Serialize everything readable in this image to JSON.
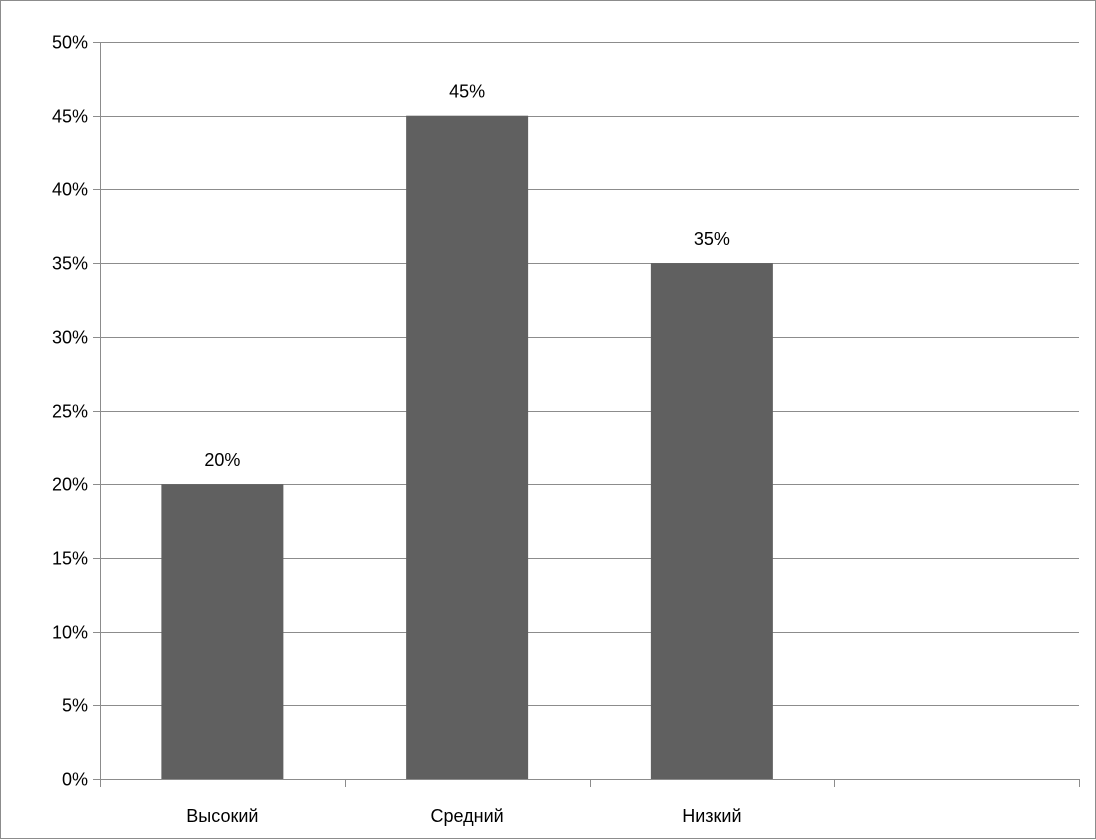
{
  "chart_data": {
    "type": "bar",
    "categories": [
      "Высокий",
      "Средний",
      "Низкий"
    ],
    "values": [
      20,
      45,
      35
    ],
    "data_labels": [
      "20%",
      "45%",
      "35%"
    ],
    "ylim": [
      0,
      50
    ],
    "y_ticks": [
      0,
      5,
      10,
      15,
      20,
      25,
      30,
      35,
      40,
      45,
      50
    ],
    "y_tick_labels": [
      "0%",
      "5%",
      "10%",
      "15%",
      "20%",
      "25%",
      "30%",
      "35%",
      "40%",
      "45%",
      "50%"
    ],
    "category_slots": 4,
    "grid": true,
    "legend": "none",
    "title": "",
    "xlabel": "",
    "ylabel": "",
    "colors": {
      "bar": "#606060",
      "grid": "#8c8c8c",
      "axis": "#8c8c8c",
      "text": "#000000"
    }
  }
}
